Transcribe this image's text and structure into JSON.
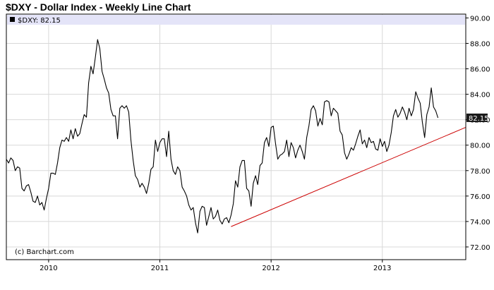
{
  "title": "$DXY - Dollar Index - Weekly Line Chart",
  "legend": {
    "symbol": "$DXY",
    "separator": ":",
    "last": "82.15"
  },
  "credit": "(c) Barchart.com",
  "colors": {
    "line": "#000000",
    "trendline": "#cc0000",
    "legend_bar": "#e4e4f8",
    "last_badge": "#1a1a1a",
    "grid": "#d8d8d8",
    "frame": "#000000"
  },
  "chart_data": {
    "type": "line",
    "title": "$DXY - Dollar Index - Weekly Line Chart",
    "x_axis": {
      "range": [
        2009.62,
        2013.75
      ],
      "ticks": [
        2010,
        2011,
        2012,
        2013
      ],
      "tick_labels": [
        "2010",
        "2011",
        "2012",
        "2013"
      ]
    },
    "y_axis": {
      "range": [
        71,
        90.3
      ],
      "ticks": [
        72,
        74,
        76,
        78,
        80,
        82,
        84,
        86,
        88,
        90
      ],
      "tick_labels": [
        "72.00",
        "74.00",
        "76.00",
        "78.00",
        "80.00",
        "82.00",
        "84.00",
        "86.00",
        "88.00",
        "90.00"
      ],
      "side": "right"
    },
    "grid": true,
    "last_value": 82.15,
    "series": [
      {
        "name": "$DXY",
        "points": [
          [
            2009.62,
            78.9
          ],
          [
            2009.64,
            78.6
          ],
          [
            2009.66,
            79.0
          ],
          [
            2009.68,
            78.8
          ],
          [
            2009.7,
            78.0
          ],
          [
            2009.72,
            78.3
          ],
          [
            2009.74,
            78.2
          ],
          [
            2009.76,
            76.6
          ],
          [
            2009.78,
            76.4
          ],
          [
            2009.8,
            76.8
          ],
          [
            2009.82,
            76.9
          ],
          [
            2009.84,
            76.3
          ],
          [
            2009.86,
            75.6
          ],
          [
            2009.88,
            75.5
          ],
          [
            2009.9,
            76.0
          ],
          [
            2009.92,
            75.3
          ],
          [
            2009.94,
            75.5
          ],
          [
            2009.96,
            74.9
          ],
          [
            2009.98,
            75.8
          ],
          [
            2010.0,
            76.6
          ],
          [
            2010.02,
            77.8
          ],
          [
            2010.04,
            77.8
          ],
          [
            2010.06,
            77.7
          ],
          [
            2010.08,
            78.6
          ],
          [
            2010.1,
            79.8
          ],
          [
            2010.12,
            80.4
          ],
          [
            2010.14,
            80.3
          ],
          [
            2010.16,
            80.6
          ],
          [
            2010.18,
            80.3
          ],
          [
            2010.2,
            81.2
          ],
          [
            2010.22,
            80.5
          ],
          [
            2010.24,
            81.3
          ],
          [
            2010.26,
            80.7
          ],
          [
            2010.28,
            80.9
          ],
          [
            2010.3,
            81.7
          ],
          [
            2010.32,
            82.4
          ],
          [
            2010.34,
            82.2
          ],
          [
            2010.36,
            84.9
          ],
          [
            2010.38,
            86.2
          ],
          [
            2010.4,
            85.6
          ],
          [
            2010.42,
            86.9
          ],
          [
            2010.44,
            88.3
          ],
          [
            2010.46,
            87.6
          ],
          [
            2010.48,
            85.8
          ],
          [
            2010.5,
            85.2
          ],
          [
            2010.52,
            84.5
          ],
          [
            2010.54,
            84.1
          ],
          [
            2010.56,
            82.8
          ],
          [
            2010.58,
            82.3
          ],
          [
            2010.6,
            82.3
          ],
          [
            2010.62,
            80.5
          ],
          [
            2010.64,
            82.9
          ],
          [
            2010.66,
            83.1
          ],
          [
            2010.68,
            82.9
          ],
          [
            2010.7,
            83.1
          ],
          [
            2010.72,
            82.6
          ],
          [
            2010.74,
            80.4
          ],
          [
            2010.76,
            78.8
          ],
          [
            2010.78,
            77.6
          ],
          [
            2010.8,
            77.3
          ],
          [
            2010.82,
            76.7
          ],
          [
            2010.84,
            77.0
          ],
          [
            2010.86,
            76.7
          ],
          [
            2010.88,
            76.2
          ],
          [
            2010.9,
            77.0
          ],
          [
            2010.92,
            78.1
          ],
          [
            2010.94,
            78.3
          ],
          [
            2010.96,
            80.4
          ],
          [
            2010.98,
            79.5
          ],
          [
            2011.0,
            80.2
          ],
          [
            2011.02,
            80.5
          ],
          [
            2011.04,
            80.5
          ],
          [
            2011.06,
            79.1
          ],
          [
            2011.08,
            81.1
          ],
          [
            2011.1,
            78.9
          ],
          [
            2011.12,
            78.0
          ],
          [
            2011.14,
            77.7
          ],
          [
            2011.16,
            78.3
          ],
          [
            2011.18,
            78.0
          ],
          [
            2011.2,
            76.7
          ],
          [
            2011.22,
            76.4
          ],
          [
            2011.24,
            76.0
          ],
          [
            2011.26,
            75.3
          ],
          [
            2011.28,
            74.9
          ],
          [
            2011.3,
            75.1
          ],
          [
            2011.32,
            73.9
          ],
          [
            2011.34,
            73.1
          ],
          [
            2011.36,
            74.8
          ],
          [
            2011.38,
            75.2
          ],
          [
            2011.4,
            75.1
          ],
          [
            2011.42,
            73.7
          ],
          [
            2011.44,
            74.4
          ],
          [
            2011.46,
            75.1
          ],
          [
            2011.48,
            74.2
          ],
          [
            2011.5,
            74.4
          ],
          [
            2011.52,
            74.9
          ],
          [
            2011.54,
            74.1
          ],
          [
            2011.56,
            73.8
          ],
          [
            2011.58,
            74.2
          ],
          [
            2011.6,
            74.3
          ],
          [
            2011.62,
            73.9
          ],
          [
            2011.64,
            74.5
          ],
          [
            2011.66,
            75.4
          ],
          [
            2011.68,
            77.2
          ],
          [
            2011.7,
            76.7
          ],
          [
            2011.72,
            78.3
          ],
          [
            2011.74,
            78.8
          ],
          [
            2011.76,
            78.8
          ],
          [
            2011.78,
            76.6
          ],
          [
            2011.8,
            76.4
          ],
          [
            2011.82,
            75.2
          ],
          [
            2011.84,
            77.0
          ],
          [
            2011.86,
            77.6
          ],
          [
            2011.88,
            76.9
          ],
          [
            2011.9,
            78.4
          ],
          [
            2011.92,
            78.6
          ],
          [
            2011.94,
            80.2
          ],
          [
            2011.96,
            80.6
          ],
          [
            2011.98,
            79.9
          ],
          [
            2012.0,
            81.4
          ],
          [
            2012.02,
            81.5
          ],
          [
            2012.04,
            80.1
          ],
          [
            2012.06,
            78.9
          ],
          [
            2012.08,
            79.2
          ],
          [
            2012.1,
            79.3
          ],
          [
            2012.12,
            79.5
          ],
          [
            2012.14,
            80.4
          ],
          [
            2012.16,
            79.1
          ],
          [
            2012.18,
            80.2
          ],
          [
            2012.2,
            79.8
          ],
          [
            2012.22,
            79.0
          ],
          [
            2012.24,
            79.6
          ],
          [
            2012.26,
            80.0
          ],
          [
            2012.28,
            79.5
          ],
          [
            2012.3,
            78.9
          ],
          [
            2012.32,
            80.6
          ],
          [
            2012.34,
            81.5
          ],
          [
            2012.36,
            82.8
          ],
          [
            2012.38,
            83.1
          ],
          [
            2012.4,
            82.7
          ],
          [
            2012.42,
            81.5
          ],
          [
            2012.44,
            82.1
          ],
          [
            2012.46,
            81.6
          ],
          [
            2012.48,
            83.4
          ],
          [
            2012.5,
            83.5
          ],
          [
            2012.52,
            83.4
          ],
          [
            2012.54,
            82.3
          ],
          [
            2012.56,
            82.9
          ],
          [
            2012.58,
            82.7
          ],
          [
            2012.6,
            82.5
          ],
          [
            2012.62,
            81.1
          ],
          [
            2012.64,
            80.8
          ],
          [
            2012.66,
            79.4
          ],
          [
            2012.68,
            78.9
          ],
          [
            2012.7,
            79.3
          ],
          [
            2012.72,
            79.8
          ],
          [
            2012.74,
            79.6
          ],
          [
            2012.76,
            80.1
          ],
          [
            2012.78,
            80.7
          ],
          [
            2012.8,
            81.2
          ],
          [
            2012.82,
            80.1
          ],
          [
            2012.84,
            80.4
          ],
          [
            2012.86,
            79.8
          ],
          [
            2012.88,
            80.6
          ],
          [
            2012.9,
            80.2
          ],
          [
            2012.92,
            80.3
          ],
          [
            2012.94,
            79.7
          ],
          [
            2012.96,
            79.6
          ],
          [
            2012.98,
            80.5
          ],
          [
            2013.0,
            79.9
          ],
          [
            2013.02,
            80.3
          ],
          [
            2013.04,
            79.5
          ],
          [
            2013.06,
            80.0
          ],
          [
            2013.08,
            81.0
          ],
          [
            2013.1,
            82.3
          ],
          [
            2013.12,
            82.8
          ],
          [
            2013.14,
            82.2
          ],
          [
            2013.16,
            82.5
          ],
          [
            2013.18,
            83.0
          ],
          [
            2013.2,
            82.6
          ],
          [
            2013.22,
            82.0
          ],
          [
            2013.24,
            82.9
          ],
          [
            2013.26,
            82.3
          ],
          [
            2013.28,
            82.8
          ],
          [
            2013.3,
            84.2
          ],
          [
            2013.32,
            83.7
          ],
          [
            2013.34,
            83.3
          ],
          [
            2013.36,
            81.8
          ],
          [
            2013.38,
            80.6
          ],
          [
            2013.4,
            82.4
          ],
          [
            2013.42,
            83.0
          ],
          [
            2013.44,
            84.5
          ],
          [
            2013.46,
            83.0
          ],
          [
            2013.48,
            82.7
          ],
          [
            2013.5,
            82.15
          ]
        ]
      }
    ],
    "trendline": {
      "from": [
        2011.64,
        73.6
      ],
      "to": [
        2013.75,
        81.4
      ]
    }
  }
}
